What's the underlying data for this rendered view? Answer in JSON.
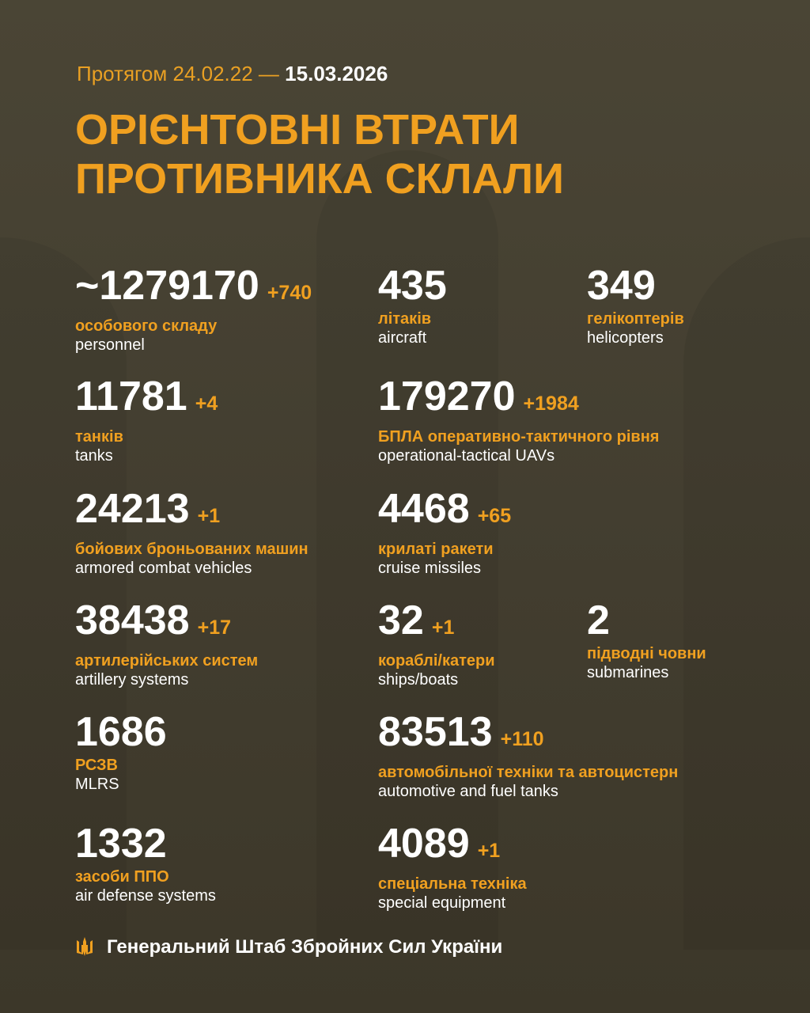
{
  "header": {
    "period_prefix": "Протягом 24.02.22 —",
    "period_end": "15.03.2026",
    "title_line1": "ОРІЄНТОВНІ ВТРАТИ",
    "title_line2": "ПРОТИВНИКА СКЛАЛИ"
  },
  "stats": [
    {
      "value": "~1279170",
      "delta": "+740",
      "ua": "особового складу",
      "en": "personnel"
    },
    {
      "value": "435",
      "delta": "",
      "ua": "літаків",
      "en": "aircraft"
    },
    {
      "value": "349",
      "delta": "",
      "ua": "гелікоптерів",
      "en": "helicopters"
    },
    {
      "value": "11781",
      "delta": "+4",
      "ua": "танків",
      "en": "tanks"
    },
    {
      "value": "179270",
      "delta": "+1984",
      "ua": "БПЛА оперативно-тактичного рівня",
      "en": "operational-tactical UAVs"
    },
    {
      "value": "24213",
      "delta": "+1",
      "ua": "бойових броньованих машин",
      "en": "armored combat vehicles"
    },
    {
      "value": "4468",
      "delta": "+65",
      "ua": "крилаті ракети",
      "en": "cruise missiles"
    },
    {
      "value": "38438",
      "delta": "+17",
      "ua": "артилерійських систем",
      "en": "artillery systems"
    },
    {
      "value": "32",
      "delta": "+1",
      "ua": "кораблі/катери",
      "en": "ships/boats"
    },
    {
      "value": "2",
      "delta": "",
      "ua": "підводні човни",
      "en": "submarines"
    },
    {
      "value": "1686",
      "delta": "",
      "ua": "РСЗВ",
      "en": "MLRS"
    },
    {
      "value": "83513",
      "delta": "+110",
      "ua": "автомобільної техніки та автоцистерн",
      "en": "automotive and fuel tanks"
    },
    {
      "value": "1332",
      "delta": "",
      "ua": "засоби ППО",
      "en": "air defense systems"
    },
    {
      "value": "4089",
      "delta": "+1",
      "ua": "спеціальна техніка",
      "en": "special equipment"
    }
  ],
  "footer": {
    "icon": "trident-icon",
    "text": "Генеральний Штаб Збройних Сил України"
  },
  "colors": {
    "accent": "#f0a020",
    "background": "#453f31",
    "text": "#ffffff"
  }
}
